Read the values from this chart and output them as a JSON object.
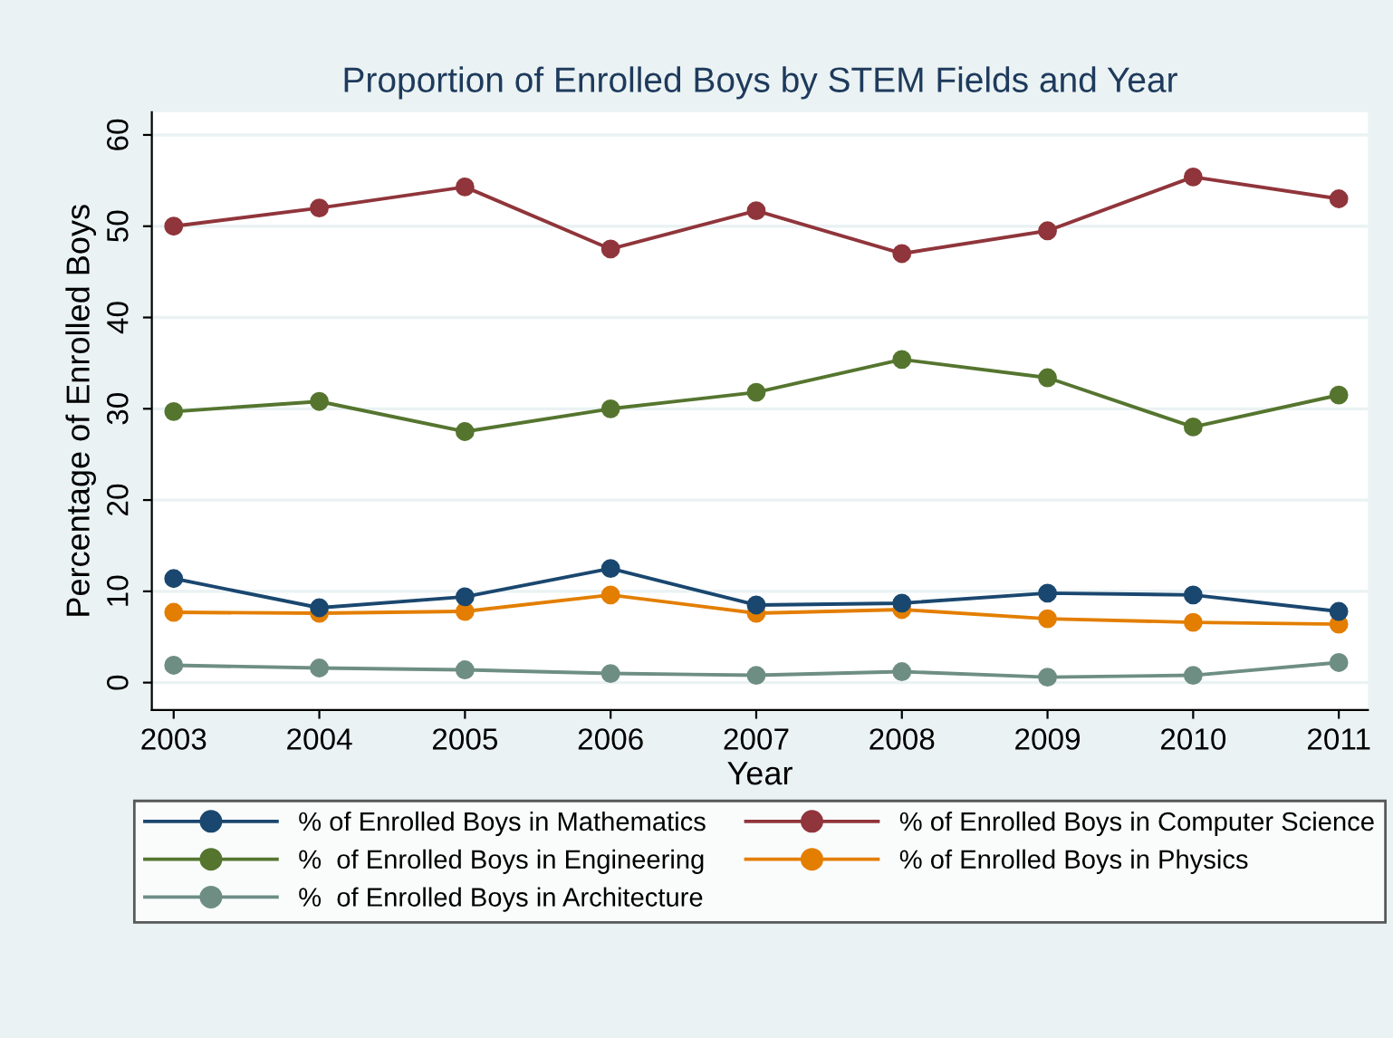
{
  "chart_data": {
    "type": "line",
    "title": "Proportion of Enrolled Boys by STEM Fields and Year",
    "xlabel": "Year",
    "ylabel": "Percentage of Enrolled Boys",
    "x": [
      2003,
      2004,
      2005,
      2006,
      2007,
      2008,
      2009,
      2010,
      2011
    ],
    "series": [
      {
        "name": "% of Enrolled Boys in Mathematics",
        "color": "#1a476f",
        "values": [
          11.4,
          8.2,
          9.4,
          12.5,
          8.5,
          8.7,
          9.8,
          9.6,
          7.8
        ]
      },
      {
        "name": "% of Enrolled Boys in Computer Science",
        "color": "#90353b",
        "values": [
          50,
          52,
          54.3,
          47.5,
          51.7,
          47,
          49.5,
          55.4,
          53
        ]
      },
      {
        "name": "%  of Enrolled Boys in Engineering",
        "color": "#55752f",
        "values": [
          29.7,
          30.8,
          27.5,
          30,
          31.8,
          35.4,
          33.4,
          28,
          31.5
        ]
      },
      {
        "name": "% of Enrolled Boys in Physics",
        "color": "#e37e00",
        "values": [
          7.7,
          7.6,
          7.8,
          9.6,
          7.6,
          8.0,
          7.0,
          6.6,
          6.4
        ]
      },
      {
        "name": "%  of Enrolled Boys in Architecture",
        "color": "#6e8e84",
        "values": [
          1.9,
          1.6,
          1.4,
          1.0,
          0.8,
          1.2,
          0.6,
          0.8,
          2.2
        ]
      }
    ],
    "xlim": [
      2002.85,
      2011.2
    ],
    "xticks": [
      2003,
      2004,
      2005,
      2006,
      2007,
      2008,
      2009,
      2010,
      2011
    ],
    "ylim": [
      -3,
      62.5
    ],
    "yticks": [
      0,
      10,
      20,
      30,
      40,
      50,
      60
    ],
    "grid": "y",
    "legend": "bottom",
    "marker": "circle",
    "line_style": "solid"
  }
}
